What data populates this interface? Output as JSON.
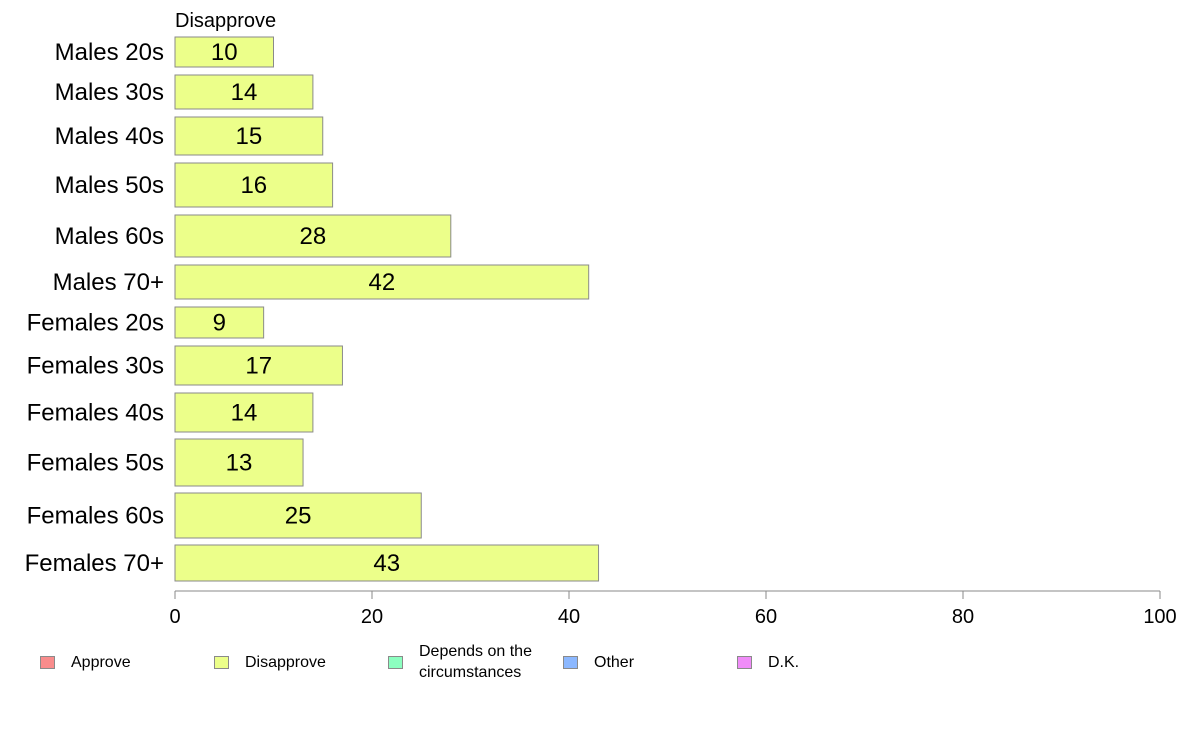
{
  "chart_data": {
    "type": "bar",
    "orientation": "horizontal",
    "stacked": true,
    "series_header": "Disapprove",
    "categories": [
      "Males 20s",
      "Males 30s",
      "Males 40s",
      "Males 50s",
      "Males 60s",
      "Males 70+",
      "Females 20s",
      "Females 30s",
      "Females 40s",
      "Females 50s",
      "Females 60s",
      "Females 70+"
    ],
    "series": [
      {
        "name": "Disapprove",
        "color": "#ecff8a",
        "values": [
          10,
          14,
          15,
          16,
          28,
          42,
          9,
          17,
          14,
          13,
          25,
          43
        ]
      }
    ],
    "xlim": [
      0,
      100
    ],
    "xticks": [
      "0",
      "20",
      "40",
      "60",
      "80",
      "100"
    ],
    "grid": false,
    "legend_position": "bottom"
  },
  "legend": [
    {
      "label": "Approve",
      "color": "#f98c8c"
    },
    {
      "label": "Disapprove",
      "color": "#ecff8a"
    },
    {
      "label": "Depends on the\ncircumstances",
      "color": "#8cffc0"
    },
    {
      "label": "Other",
      "color": "#8cb8ff"
    },
    {
      "label": "D.K.",
      "color": "#f08cf8"
    }
  ]
}
